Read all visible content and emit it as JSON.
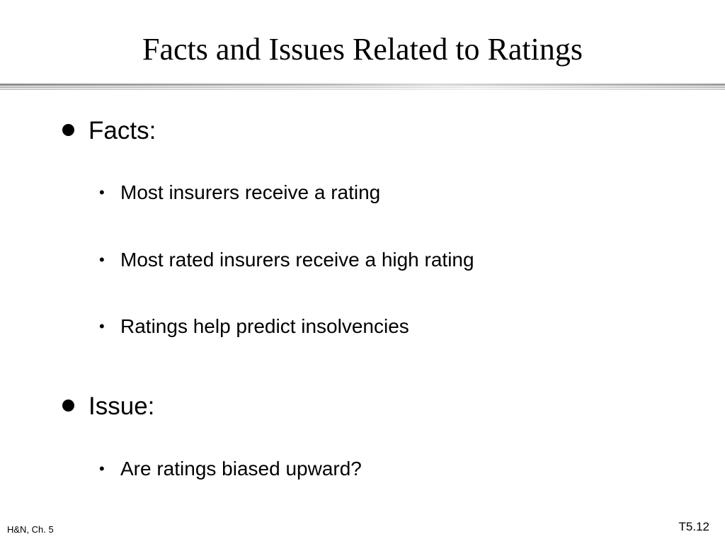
{
  "slide": {
    "title": "Facts and Issues Related to Ratings",
    "sections": [
      {
        "heading": "Facts:",
        "items": [
          "Most insurers receive a rating",
          "Most rated insurers receive a high rating",
          "Ratings help predict insolvencies"
        ]
      },
      {
        "heading": "Issue:",
        "items": [
          "Are ratings biased upward?"
        ]
      }
    ],
    "footer_left": "H&N, Ch. 5",
    "footer_right": "T5.12"
  }
}
